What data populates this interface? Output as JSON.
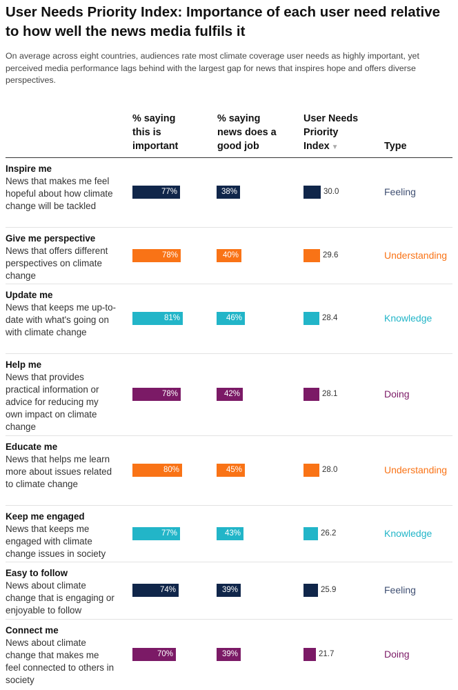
{
  "title": "User Needs Priority Index: Importance of each user need relative to how well the news media fulfils it",
  "subtitle": "On average across eight countries, audiences rate most climate coverage user needs as highly important, yet perceived media performance lags behind with the largest gap for news that inspires hope and offers diverse perspectives.",
  "headers": {
    "important": [
      "% saying",
      "this is",
      "important"
    ],
    "good_job": [
      "% saying",
      "news does a",
      "good job"
    ],
    "index": [
      "User Needs",
      "Priority",
      "Index"
    ],
    "index_sort": "▼",
    "type": "Type"
  },
  "colors": {
    "Feeling": "#10264a",
    "Understanding": "#f97316",
    "Knowledge": "#22b5c8",
    "Doing": "#7b1a66",
    "Feeling_text": "#3f4f72"
  },
  "chart_data": {
    "type": "table",
    "title": "User Needs Priority Index: Importance of each user need relative to how well the news media fulfils it",
    "columns": [
      "% saying this is important",
      "% saying news does a good job",
      "User Needs Priority Index",
      "Type"
    ],
    "rows": [
      {
        "name": "Inspire me",
        "desc": "News that makes me feel hopeful about how climate change will be tackled",
        "important": 77,
        "good_job": 38,
        "index": 30.0,
        "important_label": "77%",
        "good_job_label": "38%",
        "index_label": "30.0",
        "type": "Feeling"
      },
      {
        "name": "Give me perspective",
        "desc": "News that offers different perspectives on climate change",
        "important": 78,
        "good_job": 40,
        "index": 29.6,
        "important_label": "78%",
        "good_job_label": "40%",
        "index_label": "29.6",
        "type": "Understanding"
      },
      {
        "name": "Update me",
        "desc": "News that keeps me up-to-date with what's going on with climate change",
        "important": 81,
        "good_job": 46,
        "index": 28.4,
        "important_label": "81%",
        "good_job_label": "46%",
        "index_label": "28.4",
        "type": "Knowledge"
      },
      {
        "name": "Help me",
        "desc": "News that provides practical information or advice for reducing my own impact on climate change",
        "important": 78,
        "good_job": 42,
        "index": 28.1,
        "important_label": "78%",
        "good_job_label": "42%",
        "index_label": "28.1",
        "type": "Doing"
      },
      {
        "name": "Educate me",
        "desc": "News that helps me learn more about issues related to climate change",
        "important": 80,
        "good_job": 45,
        "index": 28.0,
        "important_label": "80%",
        "good_job_label": "45%",
        "index_label": "28.0",
        "type": "Understanding"
      },
      {
        "name": "Keep me engaged",
        "desc": "News that keeps me engaged with climate change issues in society",
        "important": 77,
        "good_job": 43,
        "index": 26.2,
        "important_label": "77%",
        "good_job_label": "43%",
        "index_label": "26.2",
        "type": "Knowledge"
      },
      {
        "name": "Easy to follow",
        "desc": "News about climate change that is engaging or enjoyable to follow",
        "important": 74,
        "good_job": 39,
        "index": 25.9,
        "important_label": "74%",
        "good_job_label": "39%",
        "index_label": "25.9",
        "type": "Feeling"
      },
      {
        "name": "Connect me",
        "desc": "News about climate change that makes me feel connected to others in society",
        "important": 70,
        "good_job": 39,
        "index": 21.7,
        "important_label": "70%",
        "good_job_label": "39%",
        "index_label": "21.7",
        "type": "Doing"
      }
    ]
  }
}
